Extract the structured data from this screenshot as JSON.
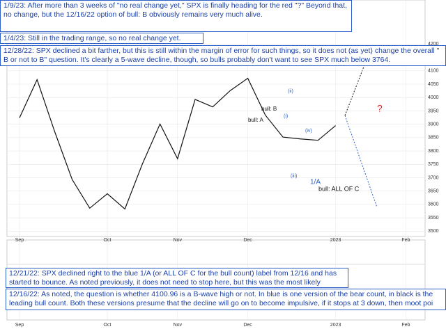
{
  "chart_data": {
    "type": "line",
    "categories": [
      "Sep",
      null,
      null,
      null,
      null,
      "Oct",
      null,
      null,
      null,
      "Nov",
      null,
      null,
      null,
      "Dec",
      null,
      null,
      null,
      null,
      "2023",
      null,
      null,
      null,
      "Feb",
      null
    ],
    "series": [
      {
        "name": "SPX",
        "color": "#111111",
        "values": [
          3924,
          4067,
          3873,
          3693,
          3586,
          3640,
          3583,
          3752,
          3901,
          3771,
          3993,
          3965,
          4026,
          4072,
          3934,
          3852,
          3845,
          3840,
          3895,
          null,
          null,
          null,
          null,
          null
        ]
      }
    ],
    "ylim": [
      3480,
      4365
    ],
    "yticks": [
      3500,
      3550,
      3600,
      3650,
      3700,
      3750,
      3800,
      3850,
      3900,
      3950,
      4000,
      4050,
      4100,
      4150,
      4200
    ],
    "grid": true,
    "labels": [
      {
        "text": "bull: B",
        "color": "#111111"
      },
      {
        "text": "bull: A",
        "color": "#111111"
      },
      {
        "text": "(ii)",
        "color": "#2b5fc7"
      },
      {
        "text": "(i)",
        "color": "#2b5fc7"
      },
      {
        "text": "(iii)",
        "color": "#2b5fc7"
      },
      {
        "text": "(iv)",
        "color": "#2b5fc7"
      },
      {
        "text": "1/A",
        "color": "#2b5fc7"
      },
      {
        "text": "bull: ALL OF C",
        "color": "#111111"
      },
      {
        "text": "?",
        "color": "#e02020"
      }
    ],
    "notes": [
      "1/9/23:  After more than 3 weeks of \"no real change yet,\" SPX is finally heading for the red \"?\"  Beyond that, no change, but the 12/16/22 option of bull: B obviously remains very much alive.",
      "1/4/23:  Still in the trading range, so no real change yet.",
      "12/28/22:  SPX declined a bit farther, but this is still within the margin of error for such things, so it does not (as yet) change the overall \" B or not to B\" question.  It's clearly a 5-wave decline, though, so bulls probably don't want to see SPX much below 3764.",
      "12/21/22:  SPX declined right to the blue 1/A (or ALL OF C for the bull count) label from 12/16 and has started to bounce.  As noted previously, it does not need to stop here, but this was the most likely inflection point.",
      "12/16/22:  As noted, the question is whether 4100.96 is a B-wave high or not.  In blue is one version of the bear count, in black is the leading bull count.  Both these versions presume that the decline will go on to become impulsive, if it stops at 3 down, then moot poi"
    ]
  }
}
